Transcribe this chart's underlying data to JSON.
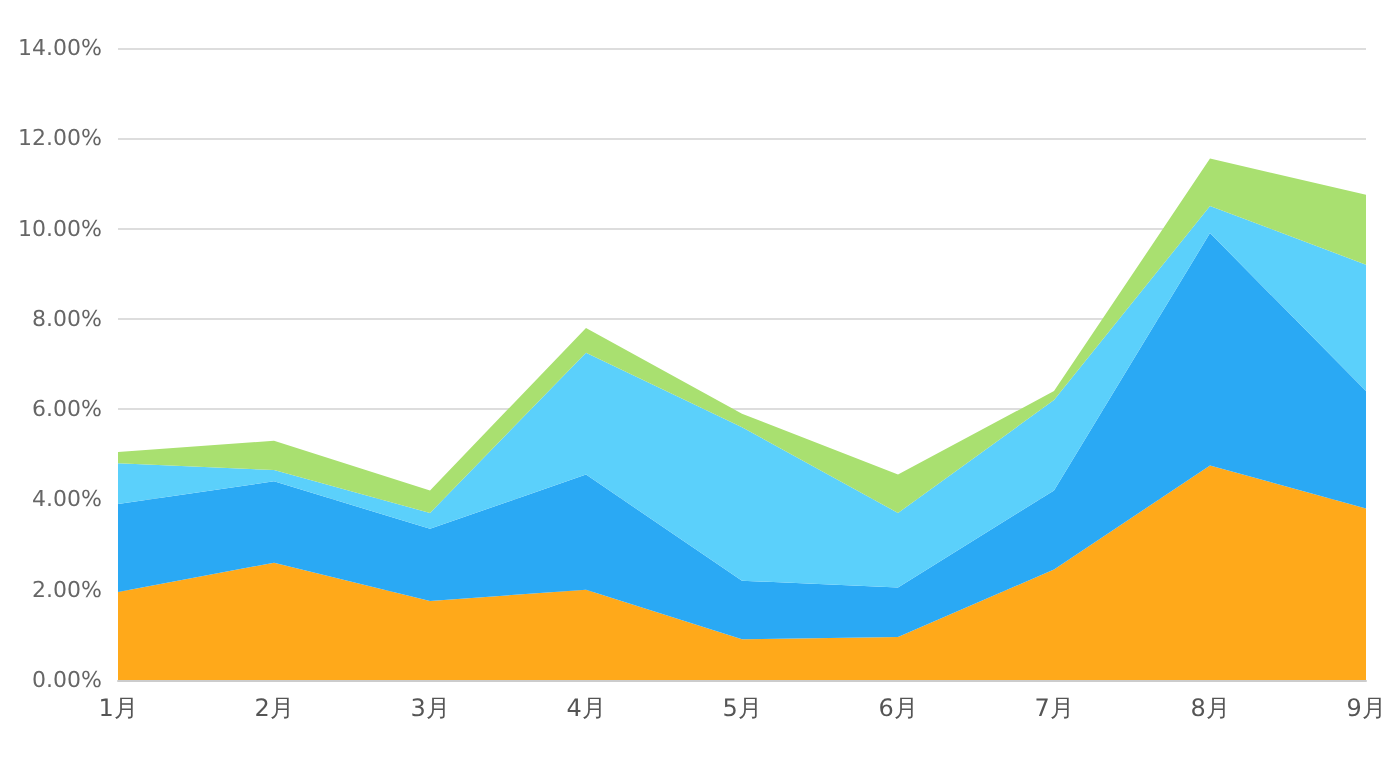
{
  "chart_data": {
    "type": "area",
    "stacked": true,
    "categories": [
      "1月",
      "2月",
      "3月",
      "4月",
      "5月",
      "6月",
      "7月",
      "8月",
      "9月"
    ],
    "series": [
      {
        "color": "#ffa91a",
        "values": [
          1.95,
          2.6,
          1.75,
          2.0,
          0.9,
          0.95,
          2.45,
          4.75,
          3.8
        ]
      },
      {
        "color": "#2aa9f4",
        "values": [
          1.95,
          1.8,
          1.6,
          2.55,
          1.3,
          1.1,
          1.75,
          5.15,
          2.6
        ]
      },
      {
        "color": "#5bd0fb",
        "values": [
          0.9,
          0.25,
          0.35,
          2.7,
          3.4,
          1.65,
          2.0,
          0.6,
          2.8
        ]
      },
      {
        "color": "#a9e070",
        "values": [
          0.25,
          0.65,
          0.5,
          0.55,
          0.3,
          0.85,
          0.2,
          1.05,
          1.55
        ]
      }
    ],
    "ylim": [
      0,
      14
    ],
    "yticks": [
      {
        "value": 0,
        "label": "0.00%"
      },
      {
        "value": 2,
        "label": "2.00%"
      },
      {
        "value": 4,
        "label": "4.00%"
      },
      {
        "value": 6,
        "label": "6.00%"
      },
      {
        "value": 8,
        "label": "8.00%"
      },
      {
        "value": 10,
        "label": "10.00%"
      },
      {
        "value": 12,
        "label": "12.00%"
      },
      {
        "value": 14,
        "label": "14.00%"
      }
    ],
    "grid": "y",
    "marker": "none"
  }
}
